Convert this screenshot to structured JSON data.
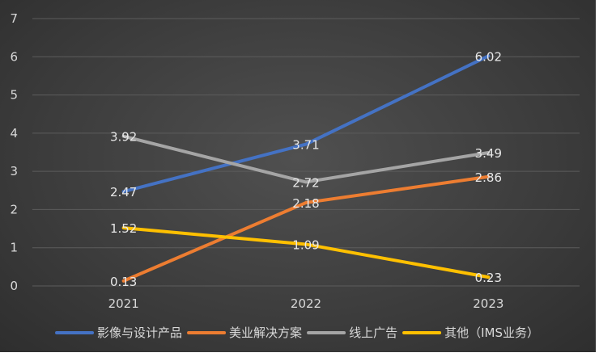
{
  "chart_data": {
    "type": "line",
    "categories": [
      "2021",
      "2022",
      "2023"
    ],
    "ylim": [
      0,
      7
    ],
    "yticks": [
      "0",
      "1",
      "2",
      "3",
      "4",
      "5",
      "6",
      "7"
    ],
    "grid": true,
    "legend_position": "bottom",
    "series": [
      {
        "name": "影像与设计产品",
        "color": "#4472c4",
        "values": [
          2.47,
          3.71,
          6.02
        ],
        "labels": [
          "2.47",
          "3.71",
          "6.02"
        ]
      },
      {
        "name": "美业解决方案",
        "color": "#ed7d31",
        "values": [
          0.13,
          2.18,
          2.86
        ],
        "labels": [
          "0.13",
          "2.18",
          "2.86"
        ]
      },
      {
        "name": "线上广告",
        "color": "#a5a5a5",
        "values": [
          3.92,
          2.72,
          3.49
        ],
        "labels": [
          "3.92",
          "2.72",
          "3.49"
        ]
      },
      {
        "name": "其他（IMS业务）",
        "color": "#ffc000",
        "values": [
          1.52,
          1.09,
          0.23
        ],
        "labels": [
          "1.52",
          "1.09",
          "0.23"
        ]
      }
    ]
  }
}
